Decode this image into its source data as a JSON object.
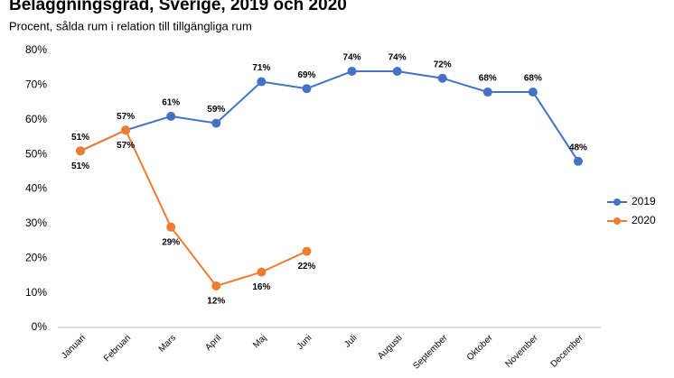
{
  "chart_data": {
    "type": "line",
    "title": "Beläggningsgrad, Sverige, 2019 och 2020",
    "subtitle": "Procent, sålda rum i relation till tillgängliga rum",
    "categories": [
      "Januari",
      "Februari",
      "Mars",
      "April",
      "Maj",
      "Juni",
      "Juli",
      "Augusti",
      "September",
      "Oktober",
      "November",
      "December"
    ],
    "series": [
      {
        "name": "2019",
        "color": "#4472c4",
        "values": [
          51,
          57,
          61,
          59,
          71,
          69,
          74,
          74,
          72,
          68,
          68,
          48
        ],
        "value_labels": [
          "51%",
          "57%",
          "61%",
          "59%",
          "71%",
          "69%",
          "74%",
          "74%",
          "72%",
          "68%",
          "68%",
          "48%"
        ]
      },
      {
        "name": "2020",
        "color": "#ed7d31",
        "values": [
          51,
          57,
          29,
          12,
          16,
          22,
          null,
          null,
          null,
          null,
          null,
          null
        ],
        "value_labels": [
          "51%",
          "57%",
          "29%",
          "12%",
          "16%",
          "22%",
          null,
          null,
          null,
          null,
          null,
          null
        ]
      }
    ],
    "ylim": [
      0,
      80
    ],
    "yticks": [
      {
        "value": 0,
        "label": "0%"
      },
      {
        "value": 10,
        "label": "10%"
      },
      {
        "value": 20,
        "label": "20%"
      },
      {
        "value": 30,
        "label": "30%"
      },
      {
        "value": 40,
        "label": "40%"
      },
      {
        "value": 50,
        "label": "50%"
      },
      {
        "value": 60,
        "label": "60%"
      },
      {
        "value": 70,
        "label": "70%"
      },
      {
        "value": 80,
        "label": "80%"
      }
    ],
    "grid": false,
    "legend": "right"
  }
}
